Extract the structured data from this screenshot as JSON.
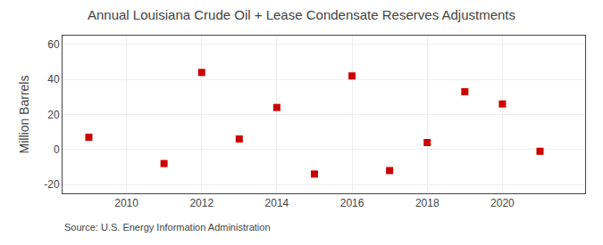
{
  "chart_data": {
    "type": "scatter",
    "title": "Annual Louisiana Crude Oil + Lease Condensate Reserves Adjustments",
    "y_label": "Million Barrels",
    "annotations": [
      "Source: U.S. Energy Information Administration"
    ],
    "x": [
      2009,
      2011,
      2012,
      2013,
      2014,
      2015,
      2016,
      2017,
      2018,
      2019,
      2020,
      2021
    ],
    "values": [
      7,
      -8,
      44,
      6,
      24,
      -14,
      42,
      -12,
      4,
      33,
      26,
      -1
    ],
    "color": "#cc0000",
    "marker": "square",
    "xlim": [
      2008.3,
      2022.2
    ],
    "xticks": [
      2010,
      2012,
      2014,
      2016,
      2018,
      2020
    ],
    "ylim": [
      -25,
      65
    ],
    "yticks": [
      -20,
      0,
      20,
      40,
      60
    ],
    "grid": true
  }
}
